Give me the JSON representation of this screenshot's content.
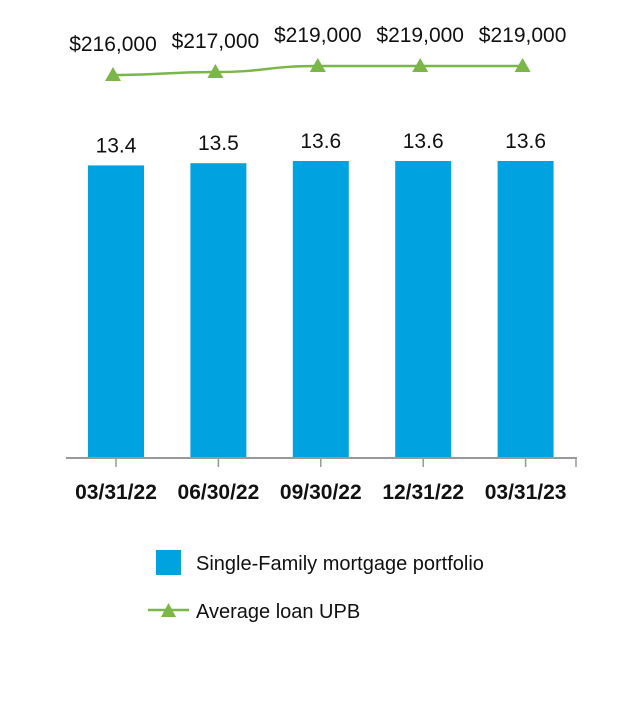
{
  "chart_data": {
    "type": "bar",
    "categories": [
      "03/31/22",
      "06/30/22",
      "09/30/22",
      "12/31/22",
      "03/31/23"
    ],
    "series": [
      {
        "name": "Single-Family mortgage portfolio",
        "kind": "bar",
        "values": [
          13.4,
          13.5,
          13.6,
          13.6,
          13.6
        ],
        "labels": [
          "13.4",
          "13.5",
          "13.6",
          "13.6",
          "13.6"
        ],
        "color": "#00a3e0"
      },
      {
        "name": "Average loan UPB",
        "kind": "line",
        "marker": "triangle",
        "values": [
          216000,
          217000,
          219000,
          219000,
          219000
        ],
        "labels": [
          "$216,000",
          "$217,000",
          "$219,000",
          "$219,000",
          "$219,000"
        ],
        "color": "#7ab648"
      }
    ],
    "ylim_bar": [
      0,
      13.6
    ],
    "legend_position": "bottom",
    "grid": false
  }
}
